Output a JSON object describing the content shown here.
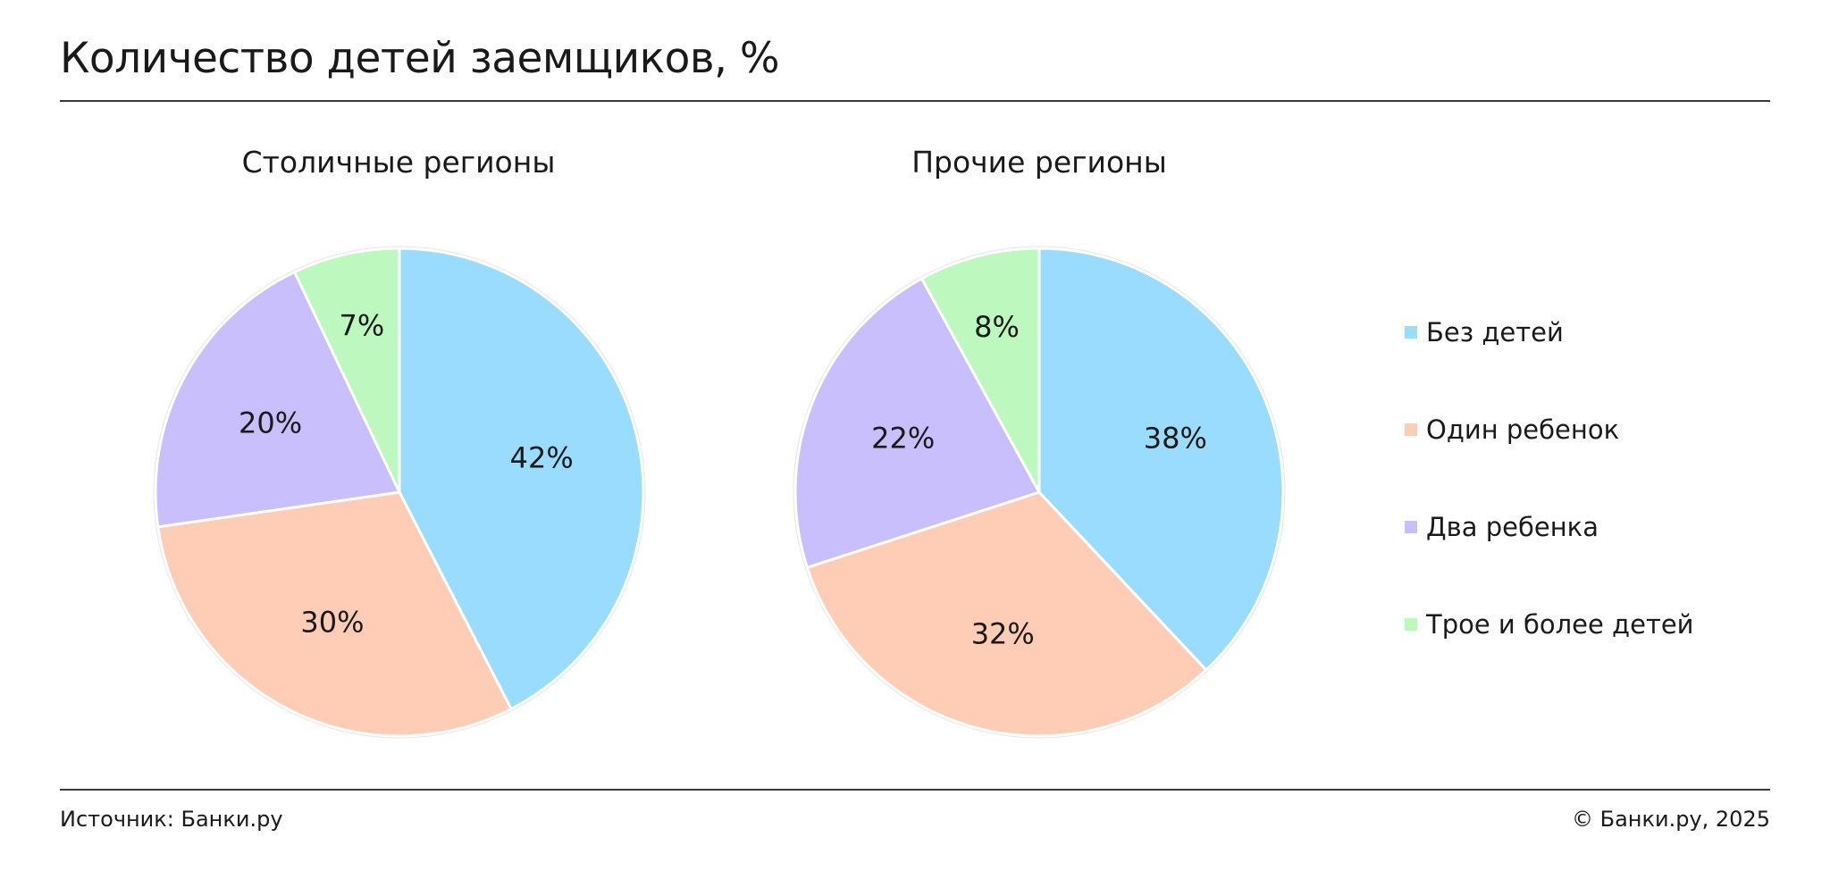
{
  "header": {
    "title": "Количество детей заемщиков, %"
  },
  "colors": {
    "no_children": "#99dcfd",
    "one_child": "#ffcdb6",
    "two_children": "#c9bffd",
    "three_plus": "#bdf8be",
    "slice_border": "#ffffff"
  },
  "chart_data": [
    {
      "type": "pie",
      "title": "Столичные регионы",
      "categories": [
        "Без детей",
        "Один ребенок",
        "Два ребенка",
        "Трое и более детей"
      ],
      "values": [
        42,
        30,
        20,
        7
      ],
      "labels": [
        "42%",
        "30%",
        "20%",
        "7%"
      ],
      "start_angle": "12 o'clock",
      "direction": "clockwise"
    },
    {
      "type": "pie",
      "title": "Прочие регионы",
      "categories": [
        "Без детей",
        "Один ребенок",
        "Два ребенка",
        "Трое и более детей"
      ],
      "values": [
        38,
        32,
        22,
        8
      ],
      "labels": [
        "38%",
        "32%",
        "22%",
        "8%"
      ],
      "start_angle": "12 o'clock",
      "direction": "clockwise"
    }
  ],
  "legend": {
    "placement": "right",
    "items": [
      {
        "label": "Без детей",
        "color_key": "no_children"
      },
      {
        "label": "Один ребенок",
        "color_key": "one_child"
      },
      {
        "label": "Два ребенка",
        "color_key": "two_children"
      },
      {
        "label": "Трое и более детей",
        "color_key": "three_plus"
      }
    ]
  },
  "footer": {
    "source": "Источник: Банки.ру",
    "copyright": "© Банки.ру, 2025"
  }
}
